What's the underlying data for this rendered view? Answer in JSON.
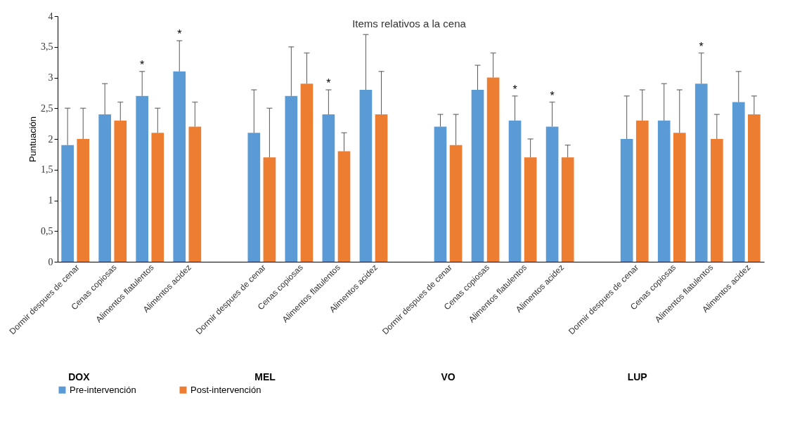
{
  "chart_data": {
    "type": "bar",
    "title": "Items relativos a la cena",
    "ylabel": "Puntuación",
    "categories": [
      "Dormir despues de cenar",
      "Cenas copiosas",
      "Alimentos flatulentos",
      "Alimentos acidez",
      null,
      "Dormir despues de cenar",
      "Cenas copiosas",
      "Alimentos flatulentos",
      "Alimentos acidez",
      null,
      "Dormir despues de cenar",
      "Cenas copiosas",
      "Alimentos flatulentos",
      "Alimentos acidez",
      null,
      "Dormir despues de cenar",
      "Cenas copiosas",
      "Alimentos flatulentos",
      "Alimentos acidez"
    ],
    "series": [
      {
        "name": "Pre-intervención",
        "color": "#5b9bd5",
        "values": [
          1.9,
          2.4,
          2.7,
          3.1,
          null,
          2.1,
          2.7,
          2.4,
          2.8,
          null,
          2.2,
          2.8,
          2.3,
          2.2,
          null,
          2.0,
          2.3,
          2.9,
          2.6
        ],
        "errors": [
          [
            1.9,
            2.5
          ],
          [
            2.4,
            2.9
          ],
          [
            2.7,
            3.1
          ],
          [
            3.1,
            3.6
          ],
          null,
          [
            2.1,
            2.8
          ],
          [
            2.7,
            3.5
          ],
          [
            2.4,
            2.8
          ],
          [
            2.8,
            3.7
          ],
          null,
          [
            2.2,
            2.4
          ],
          [
            2.8,
            3.2
          ],
          [
            2.3,
            2.7
          ],
          [
            2.2,
            2.6
          ],
          null,
          [
            2.0,
            2.7
          ],
          [
            2.3,
            2.9
          ],
          [
            2.9,
            3.4
          ],
          [
            2.6,
            3.1
          ]
        ],
        "value_labels": [
          null,
          null,
          "*",
          "*",
          null,
          null,
          null,
          "*",
          null,
          null,
          null,
          null,
          "*",
          "*",
          null,
          null,
          null,
          "*",
          null
        ]
      },
      {
        "name": "Post-intervención",
        "color": "#ed7d31",
        "values": [
          2.0,
          2.3,
          2.1,
          2.2,
          null,
          1.7,
          2.9,
          1.8,
          2.4,
          null,
          1.9,
          3.0,
          1.7,
          1.7,
          null,
          2.3,
          2.1,
          2.0,
          2.4
        ],
        "errors": [
          [
            2.0,
            2.5
          ],
          [
            2.3,
            2.6
          ],
          [
            2.1,
            2.5
          ],
          [
            2.2,
            2.6
          ],
          null,
          [
            1.7,
            2.5
          ],
          [
            2.9,
            3.4
          ],
          [
            1.8,
            2.1
          ],
          [
            2.4,
            3.1
          ],
          null,
          [
            1.9,
            2.4
          ],
          [
            3.0,
            3.4
          ],
          [
            1.7,
            2.0
          ],
          [
            1.7,
            1.9
          ],
          null,
          [
            2.3,
            2.8
          ],
          [
            2.1,
            2.8
          ],
          [
            2.0,
            2.4
          ],
          [
            2.4,
            2.7
          ]
        ]
      }
    ],
    "ylim": [
      0,
      4
    ],
    "yticks": [
      0,
      {
        "value": 0.5,
        "label": "0,5"
      },
      1,
      {
        "value": 1.5,
        "label": "1,5"
      },
      2,
      {
        "value": 2.5,
        "label": "2,5"
      },
      3,
      {
        "value": 3.5,
        "label": "3,5"
      },
      4
    ],
    "grid": false,
    "legend": "bottom",
    "annotations": [
      "DOX",
      "MEL",
      "VO",
      "LUP"
    ]
  }
}
